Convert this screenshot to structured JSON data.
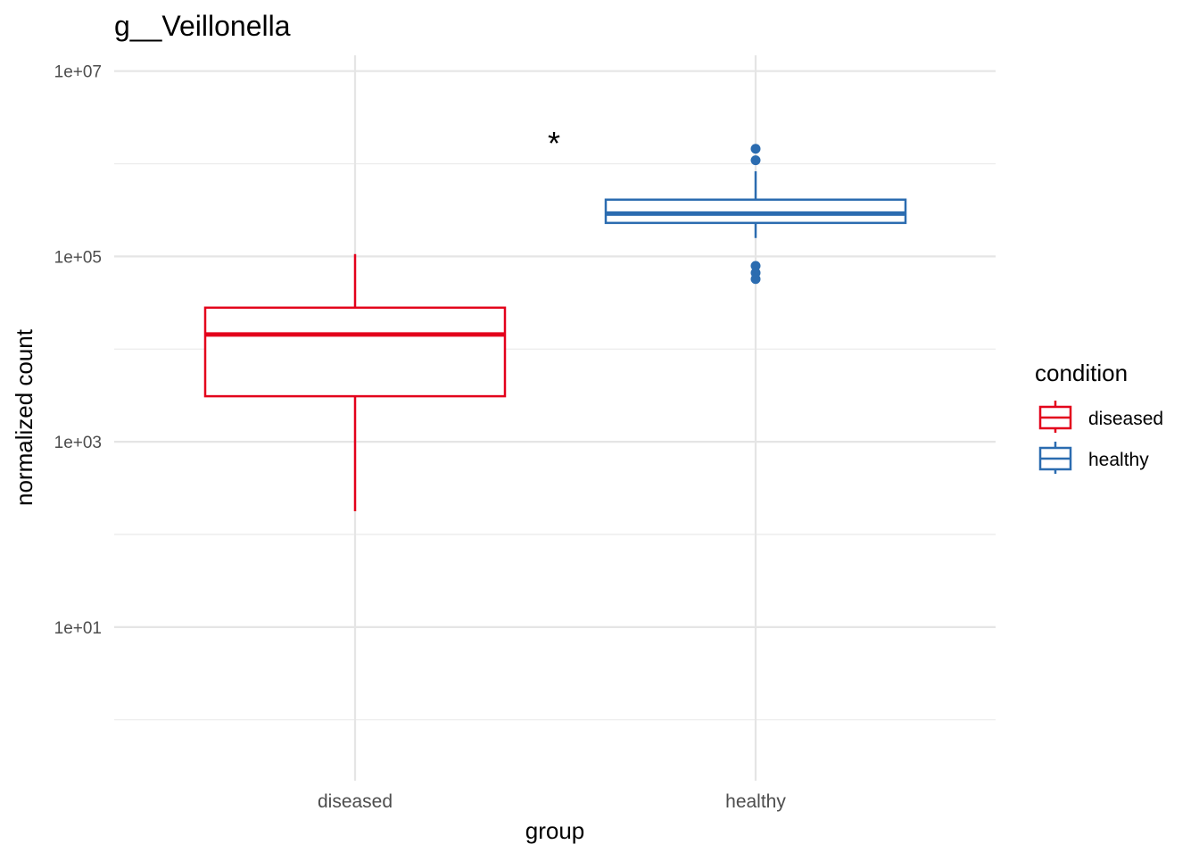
{
  "chart_data": {
    "type": "box",
    "title": "g__Veillonella",
    "xlabel": "group",
    "ylabel": "normalized count",
    "yscale": "log10",
    "ylim": [
      0.22,
      14800000
    ],
    "yticks": [
      {
        "value": 10000000,
        "label": "1e+07"
      },
      {
        "value": 100000,
        "label": "1e+05"
      },
      {
        "value": 1000,
        "label": "1e+03"
      },
      {
        "value": 10,
        "label": "1e+01"
      }
    ],
    "minor_grid": [
      1000000,
      10000,
      100,
      1
    ],
    "grid": true,
    "categories": [
      "diseased",
      "healthy"
    ],
    "annotation": {
      "text": "*",
      "x": 1.5,
      "y": 1800000
    },
    "legend": {
      "title": "condition",
      "placement": "right",
      "entries": [
        "diseased",
        "healthy"
      ]
    },
    "colors": {
      "diseased": "#E3001B",
      "healthy": "#2B6CB0"
    },
    "series": [
      {
        "name": "diseased",
        "whisker_low": 178,
        "q1": 3100,
        "median": 14400,
        "q3": 28000,
        "whisker_high": 106000,
        "outliers": []
      },
      {
        "name": "healthy",
        "whisker_low": 158000,
        "q1": 230000,
        "median": 290000,
        "q3": 410000,
        "whisker_high": 830000,
        "outliers": [
          1450000,
          1090000,
          79000,
          66500,
          57000
        ]
      }
    ]
  }
}
